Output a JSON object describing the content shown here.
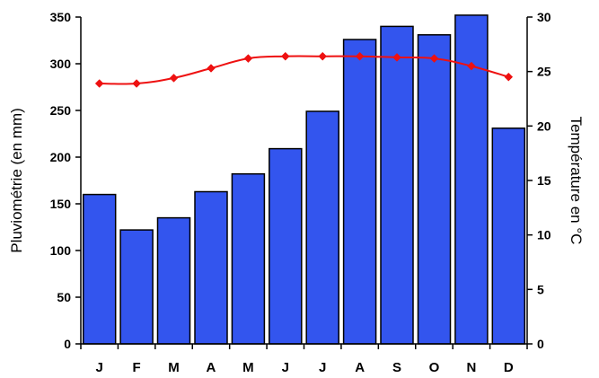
{
  "chart_data": {
    "type": "bar",
    "title": "",
    "categories": [
      "J",
      "F",
      "M",
      "A",
      "M",
      "J",
      "J",
      "A",
      "S",
      "O",
      "N",
      "D"
    ],
    "ylabel": "Pluviométrie (en mm)",
    "y2label": "Température en °C",
    "ylim": [
      0,
      350
    ],
    "y2lim": [
      0,
      30
    ],
    "yticks": [
      "0",
      "50",
      "100",
      "150",
      "200",
      "250",
      "300",
      "350"
    ],
    "y2ticks": [
      "0",
      "5",
      "10",
      "15",
      "20",
      "25",
      "30"
    ],
    "grid": false,
    "series": [
      {
        "type": "bar",
        "axis": "left",
        "color": "#3355ee",
        "values": [
          160,
          122,
          135,
          163,
          182,
          209,
          249,
          326,
          340,
          331,
          352,
          231
        ]
      },
      {
        "type": "line",
        "axis": "right",
        "color": "#ee1111",
        "marker": "diamond",
        "values": [
          23.9,
          23.9,
          24.4,
          25.3,
          26.2,
          26.4,
          26.4,
          26.4,
          26.3,
          26.2,
          25.5,
          24.5
        ]
      }
    ]
  }
}
